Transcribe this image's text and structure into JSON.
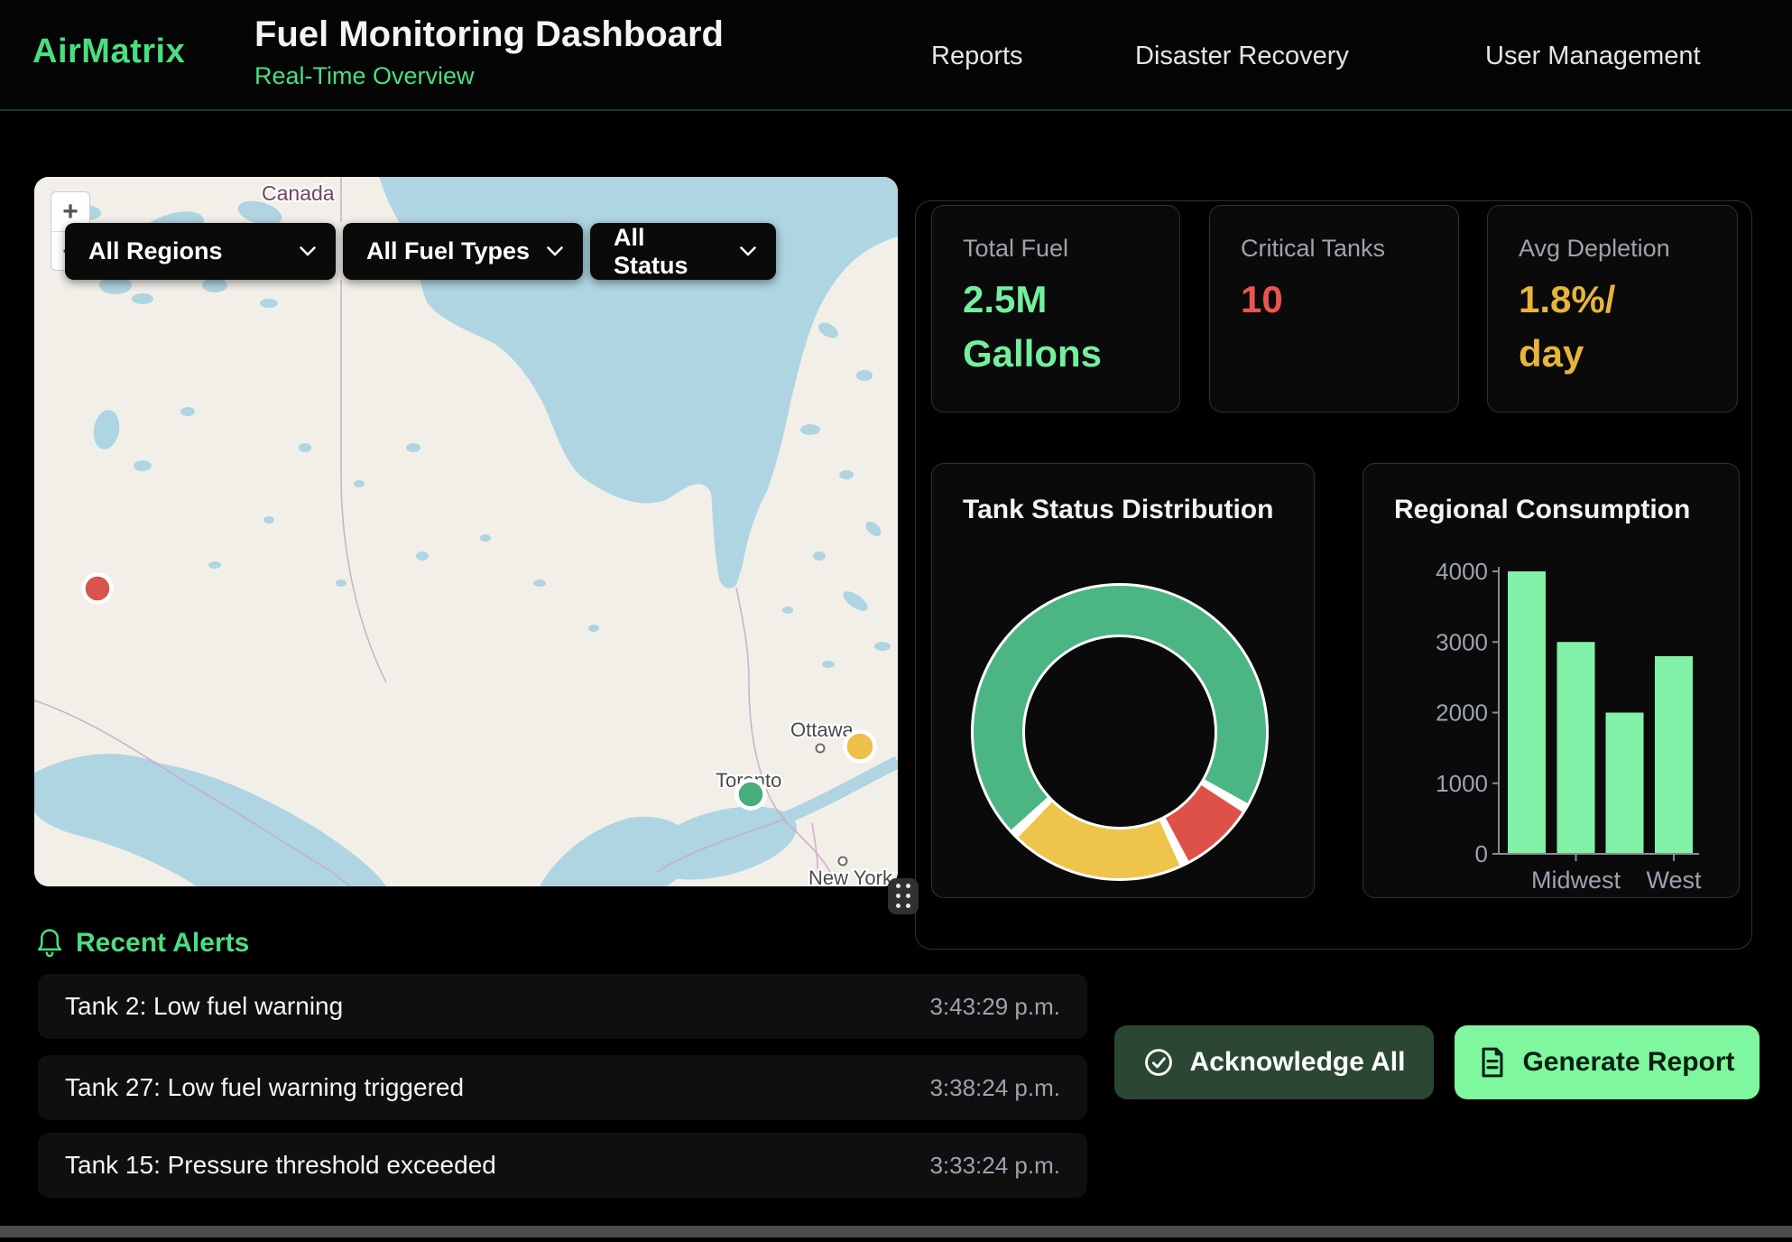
{
  "header": {
    "logo": "AirMatrix",
    "title": "Fuel Monitoring Dashboard",
    "subtitle": "Real-Time Overview",
    "nav": [
      {
        "label": "Reports"
      },
      {
        "label": "Disaster Recovery"
      },
      {
        "label": "User Management"
      }
    ]
  },
  "map": {
    "zoom_in": "+",
    "zoom_out": "−",
    "filters": [
      {
        "label": "All Regions"
      },
      {
        "label": "All Fuel Types"
      },
      {
        "label": "All Status"
      }
    ],
    "labels": {
      "country": "Canada",
      "city_1": "Ottawa",
      "city_2": "Toronto",
      "city_3": "New York"
    },
    "markers": [
      {
        "status": "critical",
        "color": "#d9534f"
      },
      {
        "status": "warning",
        "color": "#eec04a"
      },
      {
        "status": "normal",
        "color": "#47ad7c"
      }
    ]
  },
  "stats": [
    {
      "label": "Total Fuel",
      "value": "2.5M Gallons",
      "value_lines": [
        "2.5M",
        "Gallons"
      ],
      "color": "#74ef9f"
    },
    {
      "label": "Critical Tanks",
      "value": "10",
      "value_lines": [
        "10"
      ],
      "color": "#ef5350"
    },
    {
      "label": "Avg Depletion",
      "value": "1.8%/day",
      "value_lines": [
        "1.8%/",
        "day"
      ],
      "color": "#e7b43c"
    }
  ],
  "chart_data": [
    {
      "type": "pie",
      "subtype": "donut",
      "title": "Tank Status Distribution",
      "segments": [
        {
          "label": "green-normal",
          "value": 70,
          "color": "#4cb584"
        },
        {
          "label": "red-critical",
          "value": 8,
          "color": "#dd5148"
        },
        {
          "label": "yellow-warning",
          "value": 19,
          "color": "#efc44a"
        }
      ],
      "rotation_deg": -134,
      "gap_deg": 4,
      "legend": "none"
    },
    {
      "type": "bar",
      "title": "Regional Consumption",
      "values": [
        4000,
        3000,
        2000,
        2800
      ],
      "categories": [
        "",
        "Midwest",
        "",
        "West"
      ],
      "visible_x_labels": [
        {
          "bar_index": 1,
          "label": "Midwest"
        },
        {
          "bar_index": 3,
          "label": "West"
        }
      ],
      "y_ticks": [
        0,
        1000,
        2000,
        3000,
        4000
      ],
      "ylim": [
        0,
        4000
      ],
      "bar_color": "#81f2a8",
      "axis_color": "#8c8c8c",
      "tick_label_color": "#9ca3af",
      "grid": false,
      "legend": "none"
    }
  ],
  "alerts": {
    "title": "Recent Alerts",
    "items": [
      {
        "message": "Tank 2: Low fuel warning",
        "time": "3:43:29 p.m."
      },
      {
        "message": "Tank 27: Low fuel warning triggered",
        "time": "3:38:24 p.m."
      },
      {
        "message": "Tank 15: Pressure threshold exceeded",
        "time": "3:33:24 p.m."
      }
    ]
  },
  "actions": {
    "acknowledge_all": "Acknowledge All",
    "generate_report": "Generate Report"
  }
}
